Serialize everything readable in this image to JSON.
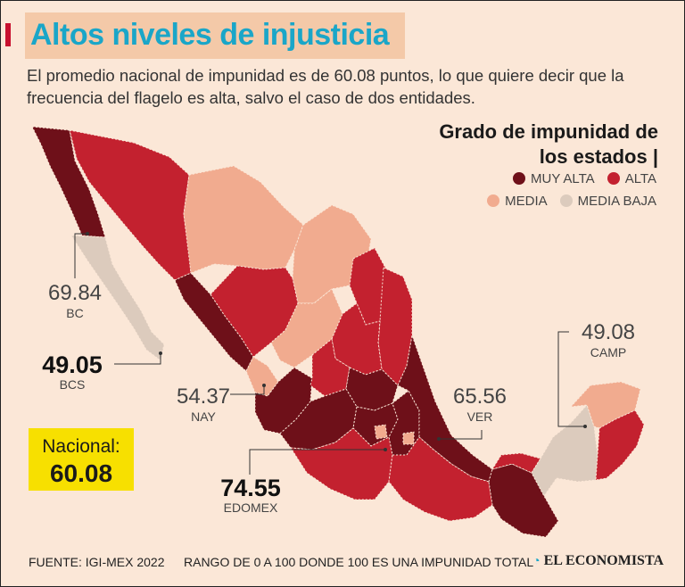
{
  "title": "Altos niveles de injusticia",
  "subtitle": "El promedio nacional de impunidad es de 60.08 puntos, lo que quiere decir que la frecuencia del flagelo es alta, salvo el caso de dos entidades.",
  "legend": {
    "title": "Grado de impunidad de los estados |",
    "items": [
      {
        "label": "MUY ALTA",
        "color": "#6e1019"
      },
      {
        "label": "ALTA",
        "color": "#c3212f"
      },
      {
        "label": "MEDIA",
        "color": "#f1ab8f"
      },
      {
        "label": "MEDIA BAJA",
        "color": "#dccbbd"
      }
    ]
  },
  "callouts": {
    "bc": {
      "value": "69.84",
      "state": "BC"
    },
    "bcs": {
      "value": "49.05",
      "state": "BCS"
    },
    "nay": {
      "value": "54.37",
      "state": "NAY"
    },
    "ver": {
      "value": "65.56",
      "state": "VER"
    },
    "camp": {
      "value": "49.08",
      "state": "CAMP"
    },
    "edomex": {
      "value": "74.55",
      "state": "EDOMEX"
    }
  },
  "national": {
    "label": "Nacional:",
    "value": "60.08"
  },
  "footer": {
    "source": "FUENTE: IGI-MEX 2022",
    "range": "RANGO DE 0 A 100 DONDE 100 ES UNA IMPUNIDAD TOTAL",
    "brand": "EL ECONOMISTA"
  }
}
